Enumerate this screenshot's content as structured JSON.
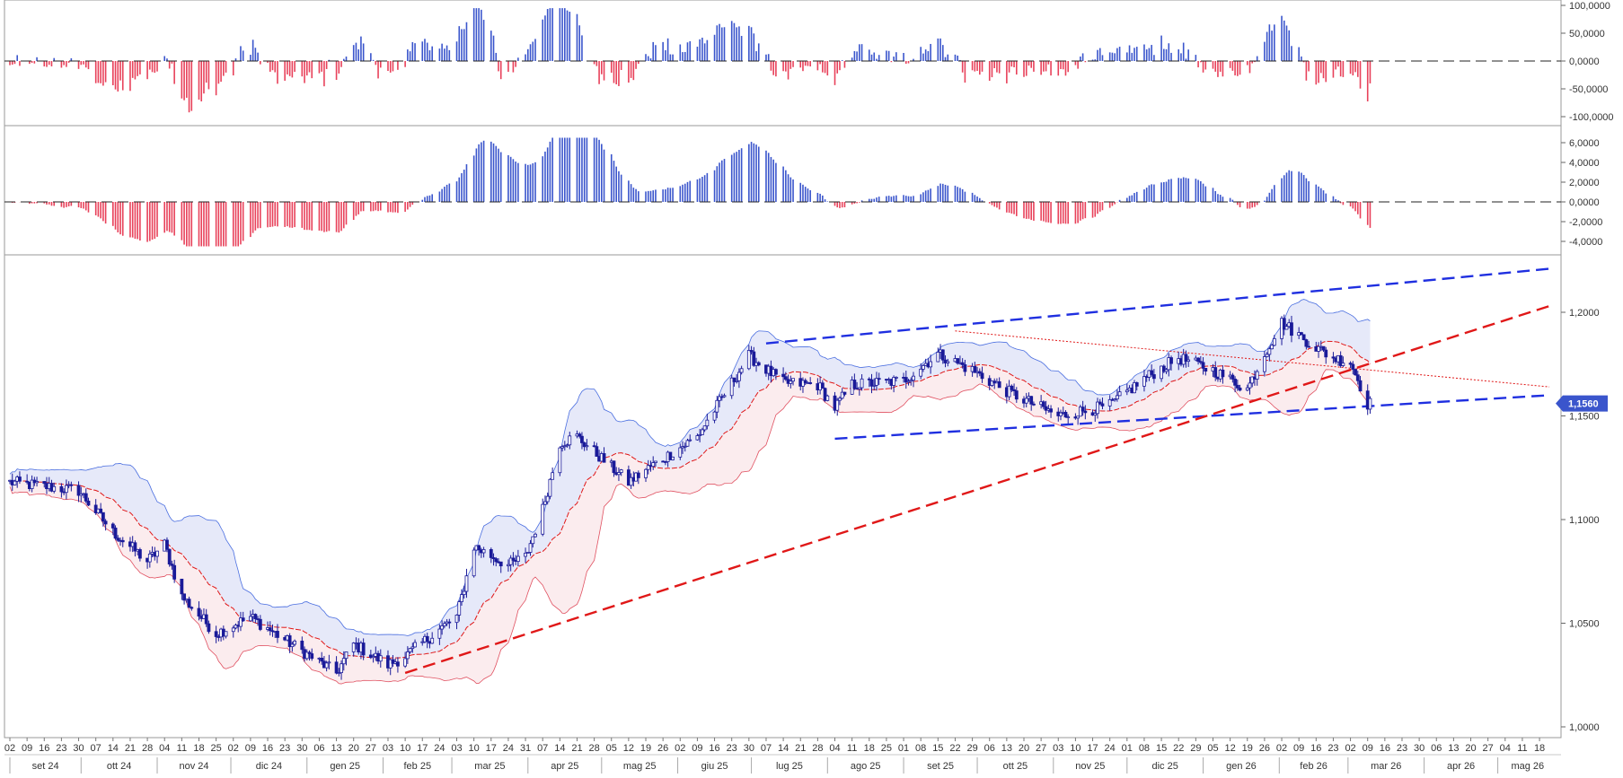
{
  "chart_data": [
    {
      "panel": "oscillator-upper",
      "type": "bar",
      "ylim": [
        -100000,
        100000
      ],
      "y_ticks": [
        "100,0000",
        "50,0000",
        "0,0000",
        "-50,0000",
        "-100,0000"
      ],
      "y_tick_values": [
        100000,
        50000,
        0,
        -50000,
        -100000
      ],
      "colors": {
        "positive": "#3a55cc",
        "negative": "#e8415a"
      },
      "baseline": 0
    },
    {
      "panel": "oscillator-lower",
      "type": "bar",
      "ylim": [
        -5000,
        7000
      ],
      "y_ticks": [
        "6,0000",
        "4,0000",
        "2,0000",
        "0,0000",
        "-2,0000",
        "-4,0000"
      ],
      "y_tick_values": [
        6000,
        4000,
        2000,
        0,
        -2000,
        -4000
      ],
      "colors": {
        "positive": "#3a55cc",
        "negative": "#e8415a"
      },
      "baseline": 0
    },
    {
      "panel": "price",
      "type": "candlestick",
      "ylim": [
        0.995,
        1.228
      ],
      "y_ticks": [
        "1,2000",
        "1,1500",
        "1,1000",
        "1,0500",
        "1,0000"
      ],
      "y_tick_values": [
        1.2,
        1.15,
        1.1,
        1.05,
        1.0
      ],
      "last_price_label": "1,1560",
      "last_price": 1.156,
      "overlays": [
        "bollinger-bands",
        "moving-average",
        "trendlines"
      ],
      "anchor_closes": [
        [
          "2024-09-02",
          1.118
        ],
        [
          "2024-09-30",
          1.114
        ],
        [
          "2024-10-14",
          1.094
        ],
        [
          "2024-10-28",
          1.08
        ],
        [
          "2024-11-04",
          1.088
        ],
        [
          "2024-11-11",
          1.063
        ],
        [
          "2024-11-25",
          1.045
        ],
        [
          "2024-12-09",
          1.053
        ],
        [
          "2024-12-23",
          1.042
        ],
        [
          "2025-01-13",
          1.026
        ],
        [
          "2025-01-20",
          1.04
        ],
        [
          "2025-02-03",
          1.03
        ],
        [
          "2025-02-10",
          1.034
        ],
        [
          "2025-02-24",
          1.047
        ],
        [
          "2025-03-03",
          1.053
        ],
        [
          "2025-03-10",
          1.087
        ],
        [
          "2025-03-24",
          1.078
        ],
        [
          "2025-03-31",
          1.082
        ],
        [
          "2025-04-07",
          1.105
        ],
        [
          "2025-04-14",
          1.137
        ],
        [
          "2025-04-21",
          1.14
        ],
        [
          "2025-05-12",
          1.118
        ],
        [
          "2025-05-19",
          1.124
        ],
        [
          "2025-06-09",
          1.14
        ],
        [
          "2025-06-30",
          1.179
        ],
        [
          "2025-07-14",
          1.166
        ],
        [
          "2025-07-28",
          1.165
        ],
        [
          "2025-08-04",
          1.154
        ],
        [
          "2025-08-11",
          1.165
        ],
        [
          "2025-09-01",
          1.167
        ],
        [
          "2025-09-15",
          1.18
        ],
        [
          "2025-09-29",
          1.172
        ],
        [
          "2025-10-13",
          1.162
        ],
        [
          "2025-11-03",
          1.15
        ],
        [
          "2025-11-24",
          1.155
        ],
        [
          "2025-12-08",
          1.168
        ],
        [
          "2025-12-22",
          1.178
        ],
        [
          "2026-01-05",
          1.172
        ],
        [
          "2026-01-19",
          1.163
        ],
        [
          "2026-01-26",
          1.18
        ],
        [
          "2026-02-02",
          1.195
        ],
        [
          "2026-02-16",
          1.183
        ],
        [
          "2026-02-23",
          1.178
        ],
        [
          "2026-03-02",
          1.176
        ],
        [
          "2026-03-09",
          1.156
        ]
      ]
    }
  ],
  "x_axis": {
    "day_ticks": [
      "02",
      "09",
      "16",
      "23",
      "30",
      "07",
      "14",
      "21",
      "28",
      "04",
      "11",
      "18",
      "25",
      "02",
      "09",
      "16",
      "23",
      "30",
      "06",
      "13",
      "20",
      "27",
      "03",
      "10",
      "17",
      "24",
      "03",
      "10",
      "17",
      "24",
      "31",
      "07",
      "14",
      "21",
      "28",
      "05",
      "12",
      "19",
      "26",
      "02",
      "09",
      "16",
      "23",
      "30",
      "07",
      "14",
      "21",
      "28",
      "04",
      "11",
      "18",
      "25",
      "01",
      "08",
      "15",
      "22",
      "29",
      "06",
      "13",
      "20",
      "27",
      "03",
      "10",
      "17",
      "24",
      "01",
      "08",
      "15",
      "22",
      "29",
      "05",
      "12",
      "19",
      "26",
      "02",
      "09",
      "16",
      "23",
      "02",
      "09",
      "16",
      "23",
      "30",
      "06",
      "13",
      "20",
      "27",
      "04",
      "11",
      "18"
    ],
    "month_labels": [
      "set 24",
      "ott 24",
      "nov 24",
      "dic 24",
      "gen 25",
      "feb 25",
      "mar 25",
      "apr 25",
      "mag 25",
      "giu 25",
      "lug 25",
      "ago 25",
      "set 25",
      "ott 25",
      "nov 25",
      "dic 25",
      "gen 26",
      "feb 26",
      "mar 26",
      "apr 26",
      "mag 26"
    ]
  }
}
